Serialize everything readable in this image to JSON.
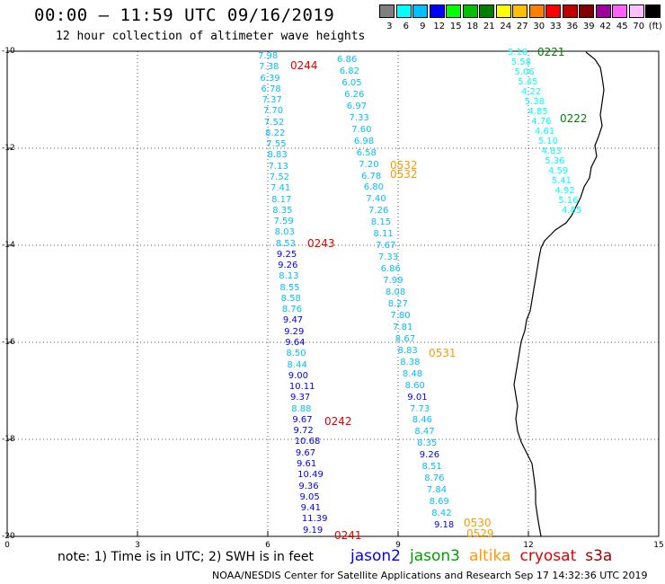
{
  "header": {
    "title": "00:00 — 11:59 UTC 09/16/2019",
    "subtitle": "12 hour collection of altimeter wave heights"
  },
  "legend": {
    "labels": [
      "3",
      "6",
      "9",
      "12",
      "15",
      "18",
      "21",
      "24",
      "27",
      "30",
      "33",
      "36",
      "39",
      "42",
      "45",
      "70",
      "(ft)"
    ],
    "colors": [
      "#7f7f7f",
      "#00ffff",
      "#00bfff",
      "#0000ff",
      "#00ff00",
      "#00c000",
      "#008000",
      "#ffff00",
      "#ffc000",
      "#ff8000",
      "#ff0000",
      "#c00000",
      "#800000",
      "#a000a0",
      "#ff60ff",
      "#ffc0ff",
      "#000000"
    ]
  },
  "axes": {
    "lat_labels": [
      "-10",
      "-12",
      "-14",
      "-16",
      "-18",
      "-20"
    ],
    "lon_labels": [
      "0",
      "3",
      "6",
      "9",
      "12",
      "15"
    ]
  },
  "tracks": [
    {
      "id": "track-0244-0243-0242-0241",
      "values": [
        {
          "v": "7.98",
          "c": "#00bfff"
        },
        {
          "v": "7.38",
          "c": "#00bfff"
        },
        {
          "v": "6.39",
          "c": "#00bfff"
        },
        {
          "v": "6.78",
          "c": "#00bfff"
        },
        {
          "v": "7.37",
          "c": "#00bfff"
        },
        {
          "v": "7.70",
          "c": "#00bfff"
        },
        {
          "v": "7.52",
          "c": "#00bfff"
        },
        {
          "v": "8.22",
          "c": "#00bfff"
        },
        {
          "v": "7.55",
          "c": "#00bfff"
        },
        {
          "v": "8.83",
          "c": "#00bfff"
        },
        {
          "v": "7.13",
          "c": "#00bfff"
        },
        {
          "v": "7.52",
          "c": "#00bfff"
        },
        {
          "v": "7.41",
          "c": "#00bfff"
        },
        {
          "v": "8.17",
          "c": "#00bfff"
        },
        {
          "v": "8.35",
          "c": "#00bfff"
        },
        {
          "v": "7.59",
          "c": "#00bfff"
        },
        {
          "v": "8.03",
          "c": "#00bfff"
        },
        {
          "v": "8.53",
          "c": "#00bfff"
        },
        {
          "v": "9.25",
          "c": "#0000ff"
        },
        {
          "v": "9.26",
          "c": "#0000ff"
        },
        {
          "v": "8.13",
          "c": "#00bfff"
        },
        {
          "v": "8.55",
          "c": "#00bfff"
        },
        {
          "v": "8.58",
          "c": "#00bfff"
        },
        {
          "v": "8.76",
          "c": "#00bfff"
        },
        {
          "v": "9.47",
          "c": "#0000ff"
        },
        {
          "v": "9.29",
          "c": "#0000ff"
        },
        {
          "v": "9.64",
          "c": "#0000ff"
        },
        {
          "v": "8.50",
          "c": "#00bfff"
        },
        {
          "v": "8.44",
          "c": "#00bfff"
        },
        {
          "v": "9.00",
          "c": "#0000ff"
        },
        {
          "v": "10.11",
          "c": "#0000ff"
        },
        {
          "v": "9.37",
          "c": "#0000ff"
        },
        {
          "v": "8.88",
          "c": "#00bfff"
        },
        {
          "v": "9.67",
          "c": "#0000ff"
        },
        {
          "v": "9.72",
          "c": "#0000ff"
        },
        {
          "v": "10.68",
          "c": "#0000ff"
        },
        {
          "v": "9.67",
          "c": "#0000ff"
        },
        {
          "v": "9.61",
          "c": "#0000ff"
        },
        {
          "v": "10.49",
          "c": "#0000ff"
        },
        {
          "v": "9.36",
          "c": "#0000ff"
        },
        {
          "v": "9.05",
          "c": "#0000ff"
        },
        {
          "v": "9.41",
          "c": "#0000ff"
        },
        {
          "v": "11.39",
          "c": "#0000ff"
        },
        {
          "v": "9.19",
          "c": "#0000ff"
        }
      ]
    },
    {
      "id": "track-0532-0531-0530-0529",
      "values": [
        {
          "v": "6.86",
          "c": "#00bfff"
        },
        {
          "v": "6.82",
          "c": "#00bfff"
        },
        {
          "v": "6.05",
          "c": "#00bfff"
        },
        {
          "v": "6.26",
          "c": "#00bfff"
        },
        {
          "v": "6.97",
          "c": "#00bfff"
        },
        {
          "v": "7.33",
          "c": "#00bfff"
        },
        {
          "v": "7.60",
          "c": "#00bfff"
        },
        {
          "v": "6.98",
          "c": "#00bfff"
        },
        {
          "v": "6.58",
          "c": "#00bfff"
        },
        {
          "v": "7.20",
          "c": "#00bfff"
        },
        {
          "v": "6.78",
          "c": "#00bfff"
        },
        {
          "v": "6.80",
          "c": "#00bfff"
        },
        {
          "v": "7.40",
          "c": "#00bfff"
        },
        {
          "v": "7.26",
          "c": "#00bfff"
        },
        {
          "v": "8.15",
          "c": "#00bfff"
        },
        {
          "v": "8.11",
          "c": "#00bfff"
        },
        {
          "v": "7.67",
          "c": "#00bfff"
        },
        {
          "v": "7.33",
          "c": "#00bfff"
        },
        {
          "v": "6.86",
          "c": "#00bfff"
        },
        {
          "v": "7.99",
          "c": "#00bfff"
        },
        {
          "v": "8.08",
          "c": "#00bfff"
        },
        {
          "v": "8.27",
          "c": "#00bfff"
        },
        {
          "v": "7.80",
          "c": "#00bfff"
        },
        {
          "v": "7.81",
          "c": "#00bfff"
        },
        {
          "v": "8.67",
          "c": "#00bfff"
        },
        {
          "v": "8.83",
          "c": "#00bfff"
        },
        {
          "v": "8.38",
          "c": "#00bfff"
        },
        {
          "v": "8.48",
          "c": "#00bfff"
        },
        {
          "v": "8.60",
          "c": "#00bfff"
        },
        {
          "v": "9.01",
          "c": "#0000ff"
        },
        {
          "v": "7.73",
          "c": "#00bfff"
        },
        {
          "v": "8.46",
          "c": "#00bfff"
        },
        {
          "v": "8.47",
          "c": "#00bfff"
        },
        {
          "v": "8.35",
          "c": "#00bfff"
        },
        {
          "v": "9.26",
          "c": "#0000ff"
        },
        {
          "v": "8.51",
          "c": "#00bfff"
        },
        {
          "v": "8.76",
          "c": "#00bfff"
        },
        {
          "v": "7.84",
          "c": "#00bfff"
        },
        {
          "v": "8.69",
          "c": "#00bfff"
        },
        {
          "v": "8.42",
          "c": "#00bfff"
        },
        {
          "v": "9.18",
          "c": "#0000ff"
        }
      ]
    },
    {
      "id": "track-0221-0222",
      "values": [
        {
          "v": "5.16",
          "c": "#00ffff"
        },
        {
          "v": "5.58",
          "c": "#00ffff"
        },
        {
          "v": "5.06",
          "c": "#00ffff"
        },
        {
          "v": "5.45",
          "c": "#00ffff"
        },
        {
          "v": "4.22",
          "c": "#00ffff"
        },
        {
          "v": "5.38",
          "c": "#00ffff"
        },
        {
          "v": "4.85",
          "c": "#00ffff"
        },
        {
          "v": "4.76",
          "c": "#00ffff"
        },
        {
          "v": "4.61",
          "c": "#00ffff"
        },
        {
          "v": "5.10",
          "c": "#00ffff"
        },
        {
          "v": "4.83",
          "c": "#00ffff"
        },
        {
          "v": "5.36",
          "c": "#00ffff"
        },
        {
          "v": "4.59",
          "c": "#00ffff"
        },
        {
          "v": "5.41",
          "c": "#00ffff"
        },
        {
          "v": "4.92",
          "c": "#00ffff"
        },
        {
          "v": "5.16",
          "c": "#00ffff"
        },
        {
          "v": "4.85",
          "c": "#00ffff"
        }
      ]
    }
  ],
  "pass_labels": [
    {
      "text": "0244",
      "color": "#e00000"
    },
    {
      "text": "0243",
      "color": "#e00000"
    },
    {
      "text": "0242",
      "color": "#e00000"
    },
    {
      "text": "0241",
      "color": "#e00000"
    },
    {
      "text": "0532",
      "color": "#ff9900"
    },
    {
      "text": "0532",
      "color": "#ff9900"
    },
    {
      "text": "0531",
      "color": "#ff9900"
    },
    {
      "text": "0530",
      "color": "#ff9900"
    },
    {
      "text": "0529",
      "color": "#ff9900"
    },
    {
      "text": "0221",
      "color": "#008000"
    },
    {
      "text": "0222",
      "color": "#008000"
    }
  ],
  "footer": {
    "note": "note:  1) Time is in UTC;  2) SWH is in feet",
    "satellites": [
      {
        "name": "jason2",
        "color": "#0000ff"
      },
      {
        "name": "jason3",
        "color": "#00a000"
      },
      {
        "name": "altika",
        "color": "#ff9900"
      },
      {
        "name": "cryosat",
        "color": "#e00000"
      },
      {
        "name": "s3a",
        "color": "#a00000"
      }
    ],
    "credit": "NOAA/NESDIS Center for Satellite Applications and Research    Sep 17 14:32:36 UTC 2019"
  }
}
